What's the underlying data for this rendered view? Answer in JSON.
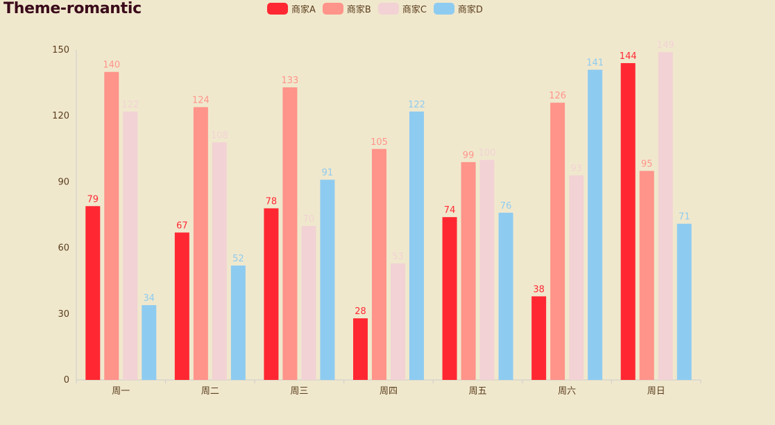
{
  "chart_data": {
    "type": "bar",
    "title": "Theme-romantic",
    "categories": [
      "周一",
      "周二",
      "周三",
      "周四",
      "周五",
      "周六",
      "周日"
    ],
    "series": [
      {
        "name": "商家A",
        "color": "#ff2832",
        "values": [
          79,
          67,
          78,
          28,
          74,
          38,
          144
        ]
      },
      {
        "name": "商家B",
        "color": "#ff948a",
        "values": [
          140,
          124,
          133,
          105,
          99,
          126,
          95
        ]
      },
      {
        "name": "商家C",
        "color": "#f2d2d4",
        "values": [
          122,
          108,
          70,
          53,
          100,
          93,
          149
        ]
      },
      {
        "name": "商家D",
        "color": "#8ecbf0",
        "values": [
          34,
          52,
          91,
          122,
          76,
          141,
          71
        ]
      }
    ],
    "ylim": [
      0,
      150
    ],
    "yticks": [
      0,
      30,
      60,
      90,
      120,
      150
    ],
    "legend_position": "top",
    "grid": false
  }
}
